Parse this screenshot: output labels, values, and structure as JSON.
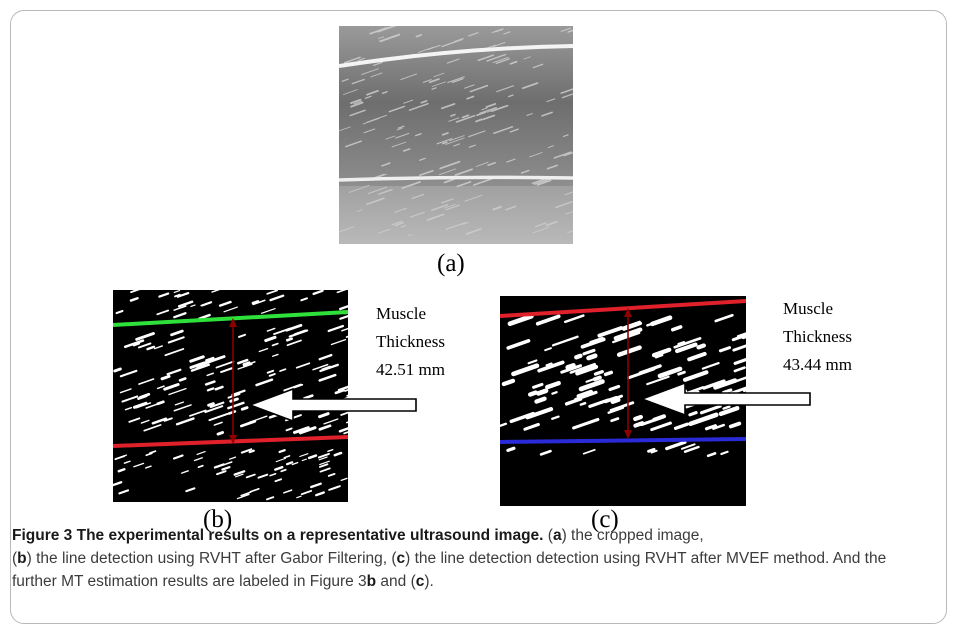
{
  "panels": {
    "a": {
      "label": "(a)"
    },
    "b": {
      "label": "(b)",
      "annotation": [
        "Muscle",
        "Thickness",
        "42.51 mm"
      ]
    },
    "c": {
      "label": "(c)",
      "annotation": [
        "Muscle",
        "Thickness",
        "43.44 mm"
      ]
    }
  },
  "caption": {
    "title": "Figure 3 The experimental results on a representative ultrasound image.",
    "t1": " (",
    "a": "a",
    "t2": ") the cropped image,",
    "t3": "(",
    "b": "b",
    "t4": ") the line detection using RVHT after Gabor Filtering, (",
    "c": "c",
    "t5": ") the line detection detection using RVHT after MVEF method. And the further MT estimation results are labeled in Figure 3",
    "b2": "b",
    "t6": " and (",
    "c2": "c",
    "t7": ")."
  },
  "colors": {
    "upper_line_b": "#2ee03a",
    "lower_line_b": "#e0202a",
    "upper_line_c": "#e0202a",
    "lower_line_c": "#2a2ad8",
    "measure": "#8b0000"
  }
}
